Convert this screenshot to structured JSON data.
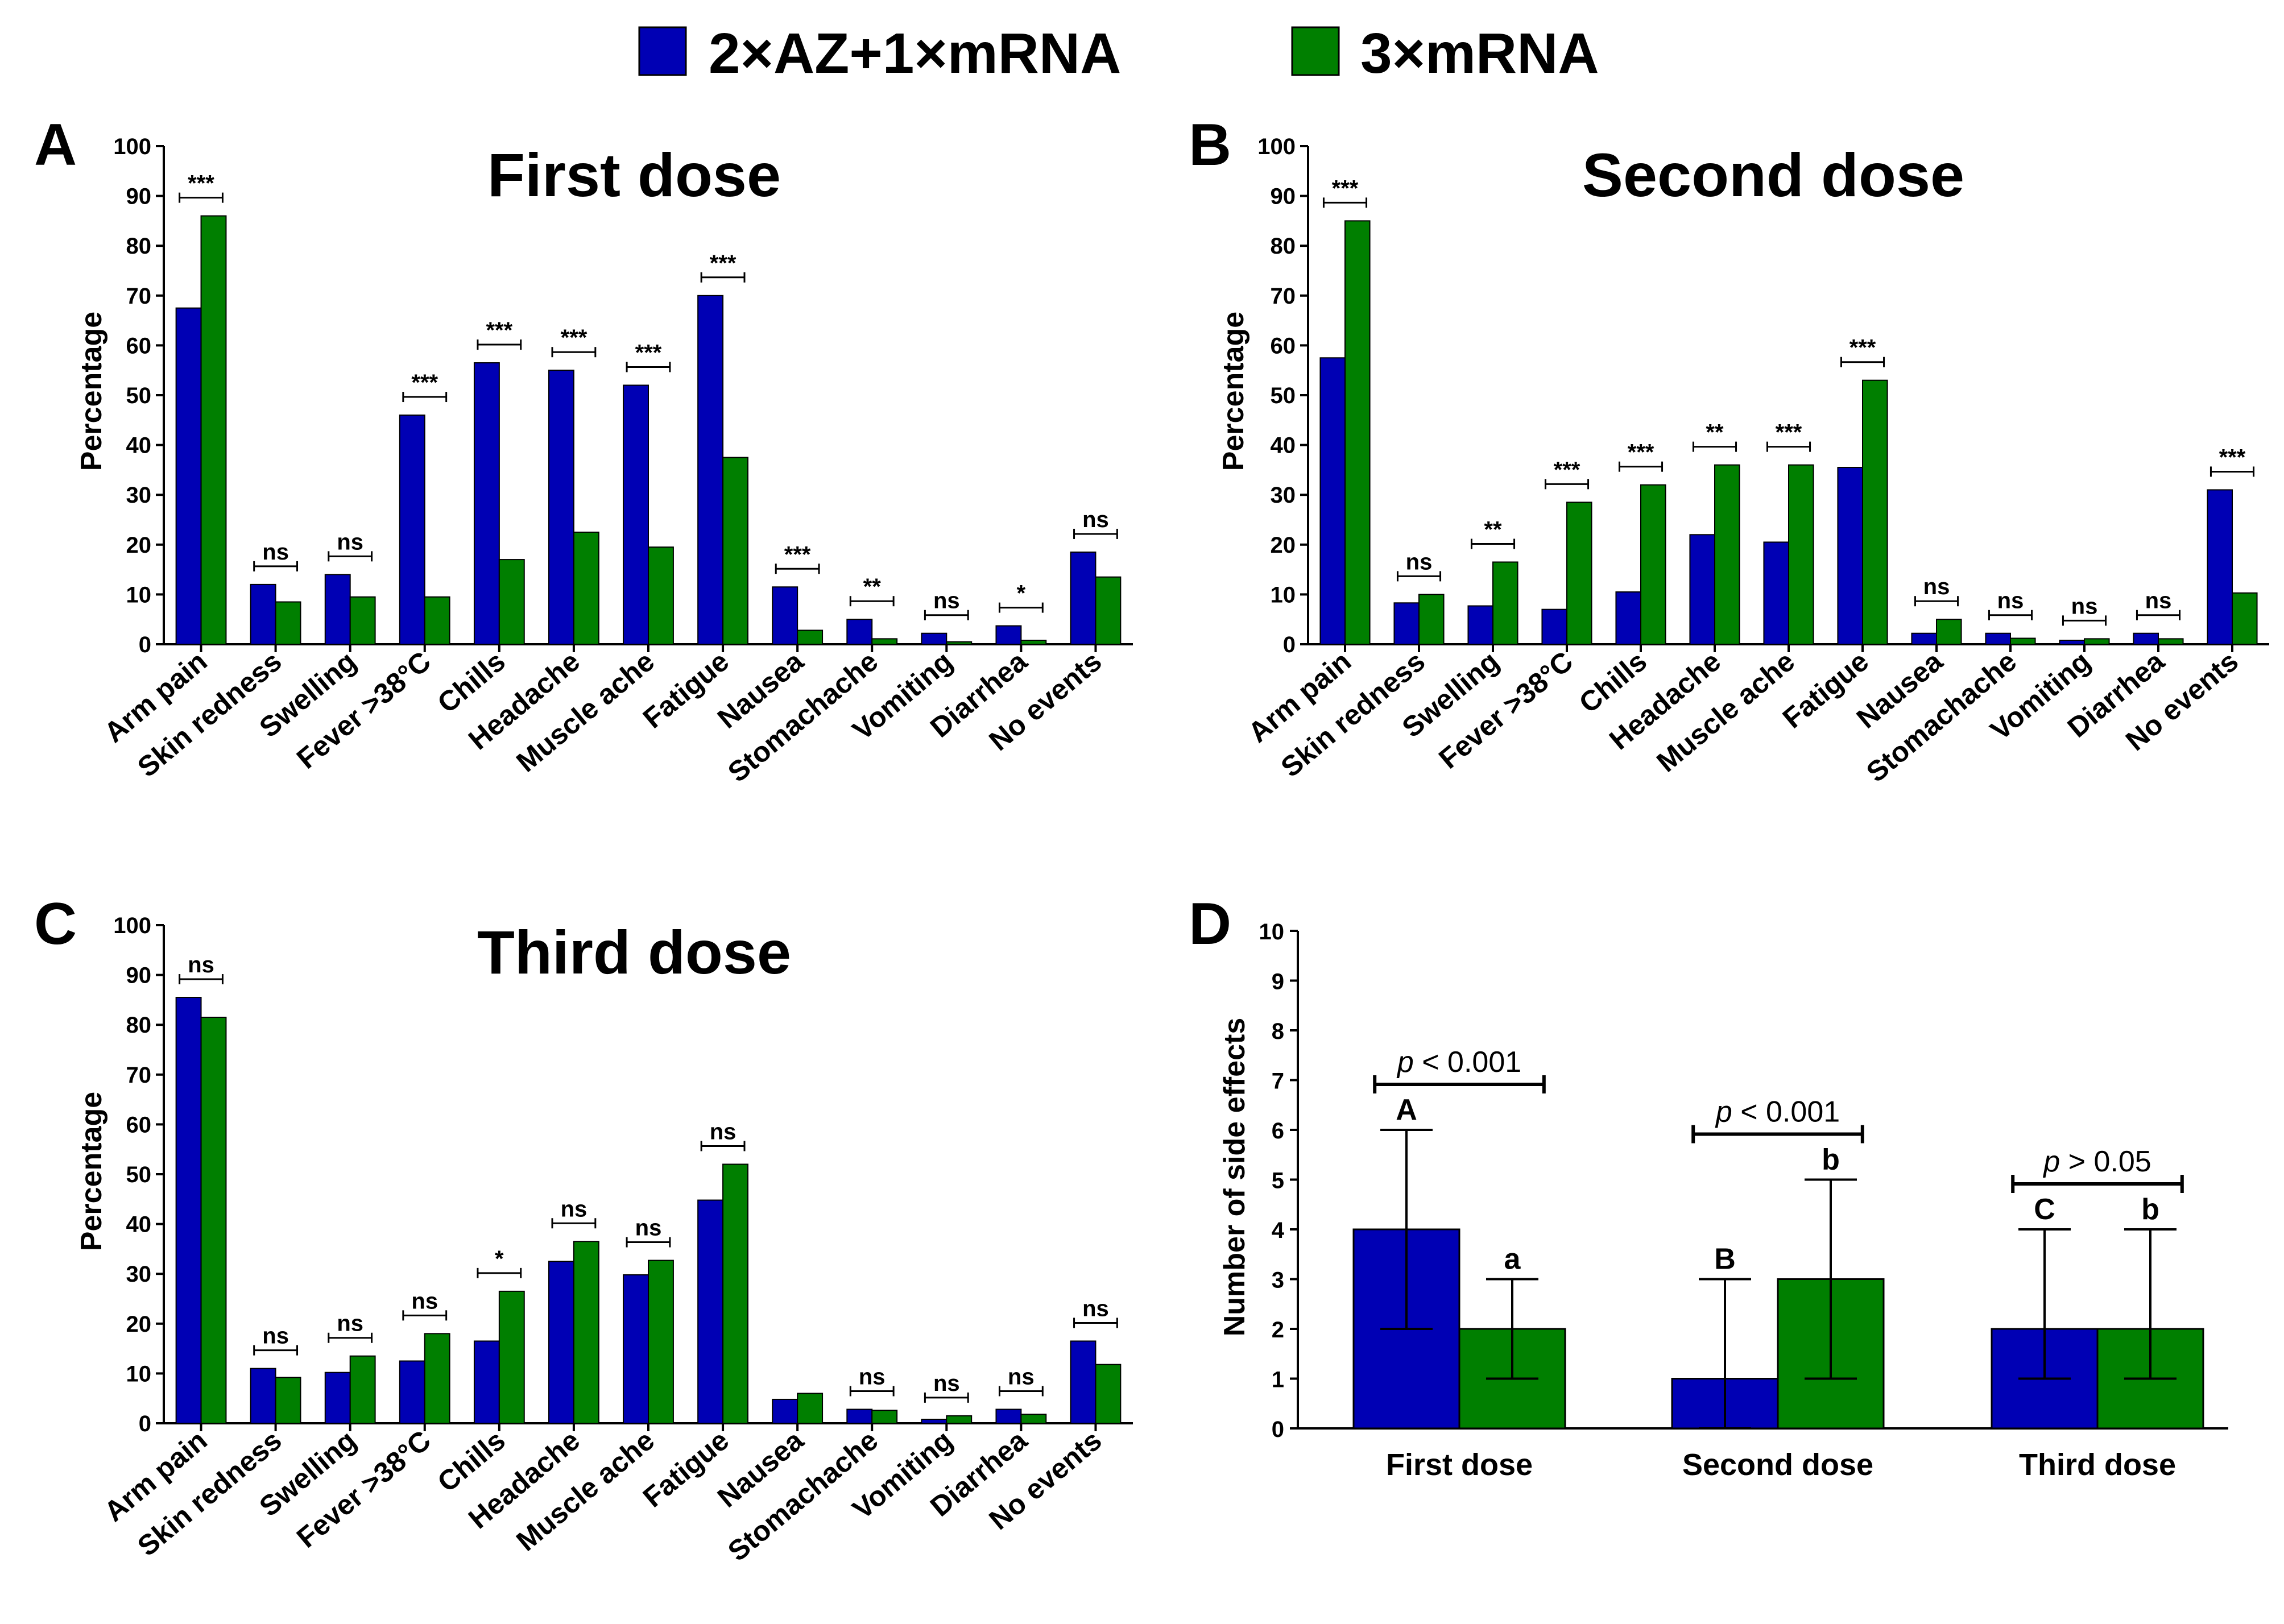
{
  "legend": {
    "items": [
      {
        "name": "2×AZ+1×mRNA",
        "color": "#0000b4"
      },
      {
        "name": "3×mRNA",
        "color": "#007f00"
      }
    ]
  },
  "chart_data": [
    {
      "panel": "A",
      "type": "bar",
      "title": "First dose",
      "ylabel": "Percentage",
      "ylim": [
        0,
        100
      ],
      "yticks": [
        0,
        10,
        20,
        30,
        40,
        50,
        60,
        70,
        80,
        90,
        100
      ],
      "categories": [
        "Arm pain",
        "Skin redness",
        "Swelling",
        "Fever >38°C",
        "Chills",
        "Headache",
        "Muscle ache",
        "Fatigue",
        "Nausea",
        "Stomachache",
        "Vomiting",
        "Diarrhea",
        "No events"
      ],
      "series": [
        {
          "name": "2×AZ+1×mRNA",
          "values": [
            67.5,
            12,
            14,
            46,
            56.5,
            55,
            52,
            70,
            11.5,
            5,
            2.2,
            3.7,
            18.5
          ]
        },
        {
          "name": "3×mRNA",
          "values": [
            86,
            8.5,
            9.5,
            9.5,
            17,
            22.5,
            19.5,
            37.5,
            2.8,
            1.1,
            0.5,
            0.8,
            13.5
          ]
        }
      ],
      "significance": [
        "***",
        "ns",
        "ns",
        "***",
        "***",
        "***",
        "***",
        "***",
        "***",
        "**",
        "ns",
        "*",
        "ns"
      ]
    },
    {
      "panel": "B",
      "type": "bar",
      "title": "Second dose",
      "ylabel": "Percentage",
      "ylim": [
        0,
        100
      ],
      "yticks": [
        0,
        10,
        20,
        30,
        40,
        50,
        60,
        70,
        80,
        90,
        100
      ],
      "categories": [
        "Arm pain",
        "Skin redness",
        "Swelling",
        "Fever >38°C",
        "Chills",
        "Headache",
        "Muscle ache",
        "Fatigue",
        "Nausea",
        "Stomachache",
        "Vomiting",
        "Diarrhea",
        "No events"
      ],
      "series": [
        {
          "name": "2×AZ+1×mRNA",
          "values": [
            57.5,
            8.3,
            7.7,
            7,
            10.5,
            22,
            20.5,
            35.5,
            2.2,
            2.2,
            0.8,
            2.2,
            31
          ]
        },
        {
          "name": "3×mRNA",
          "values": [
            85,
            10,
            16.5,
            28.5,
            32,
            36,
            36,
            53,
            5,
            1.2,
            1.1,
            1.1,
            10.3
          ]
        }
      ],
      "significance": [
        "***",
        "ns",
        "**",
        "***",
        "***",
        "**",
        "***",
        "***",
        "ns",
        "ns",
        "ns",
        "ns",
        "***"
      ]
    },
    {
      "panel": "C",
      "type": "bar",
      "title": "Third dose",
      "ylabel": "Percentage",
      "ylim": [
        0,
        100
      ],
      "yticks": [
        0,
        10,
        20,
        30,
        40,
        50,
        60,
        70,
        80,
        90,
        100
      ],
      "categories": [
        "Arm pain",
        "Skin redness",
        "Swelling",
        "Fever >38°C",
        "Chills",
        "Headache",
        "Muscle ache",
        "Fatigue",
        "Nausea",
        "Stomachache",
        "Vomiting",
        "Diarrhea",
        "No events"
      ],
      "series": [
        {
          "name": "2×AZ+1×mRNA",
          "values": [
            85.5,
            11,
            10.2,
            12.5,
            16.5,
            32.5,
            29.8,
            44.8,
            4.8,
            2.8,
            0.8,
            2.8,
            16.5
          ]
        },
        {
          "name": "3×mRNA",
          "values": [
            81.5,
            9.2,
            13.5,
            18,
            26.5,
            36.5,
            32.7,
            52,
            6,
            2.6,
            1.5,
            1.8,
            11.8
          ]
        }
      ],
      "significance": [
        "ns",
        "ns",
        "ns",
        "ns",
        "*",
        "ns",
        "ns",
        "ns",
        "",
        "ns",
        "ns",
        "ns",
        "ns"
      ]
    },
    {
      "panel": "D",
      "type": "bar",
      "ylabel": "Number of side effects",
      "ylim": [
        0,
        10
      ],
      "yticks": [
        0,
        1,
        2,
        3,
        4,
        5,
        6,
        7,
        8,
        9,
        10
      ],
      "categories": [
        "First dose",
        "Second dose",
        "Third dose"
      ],
      "series": [
        {
          "name": "2×AZ+1×mRNA",
          "values": [
            4,
            1,
            2
          ],
          "err_low": [
            2,
            0,
            1
          ],
          "err_high": [
            6,
            3,
            4
          ],
          "letters": [
            "A",
            "B",
            "C"
          ]
        },
        {
          "name": "3×mRNA",
          "values": [
            2,
            3,
            2
          ],
          "err_low": [
            1,
            1,
            1
          ],
          "err_high": [
            3,
            5,
            4
          ],
          "letters": [
            "a",
            "b",
            "b"
          ]
        }
      ],
      "comparisons": [
        {
          "p_symbol": "p",
          "p_rest": " < 0.001"
        },
        {
          "p_symbol": "p",
          "p_rest": " < 0.001"
        },
        {
          "p_symbol": "p",
          "p_rest": " > 0.05"
        }
      ]
    }
  ]
}
